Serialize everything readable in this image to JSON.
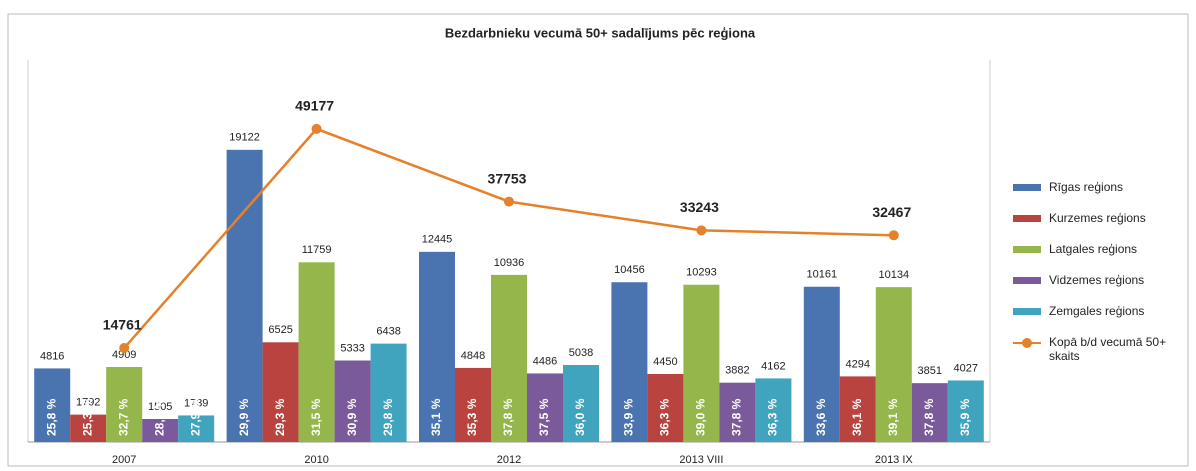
{
  "chart_data": {
    "type": "bar",
    "title": "Bezdarbnieku vecumā 50+ sadalījums pēc reģiona",
    "categories": [
      "2007",
      "2010",
      "2012",
      "2013 VIII",
      "2013 IX"
    ],
    "ylim": [
      0,
      25000
    ],
    "y2lim": [
      0,
      60000
    ],
    "series": [
      {
        "name": "Rīgas reģions",
        "color": "#4a74b0",
        "values": [
          4816,
          19122,
          12445,
          10456,
          10161
        ],
        "share_labels": [
          "25,8 %",
          "29,9 %",
          "35,1 %",
          "33,9 %",
          "33,6 %"
        ]
      },
      {
        "name": "Kurzemes reģions",
        "color": "#b8433f",
        "values": [
          1792,
          6525,
          4848,
          4450,
          4294
        ],
        "share_labels": [
          "25,3 %",
          "29,3 %",
          "35,3 %",
          "36,3 %",
          "36,1 %"
        ]
      },
      {
        "name": "Latgales reģions",
        "color": "#94b64a",
        "values": [
          4909,
          11759,
          10936,
          10293,
          10134
        ],
        "share_labels": [
          "32,7 %",
          "31,5 %",
          "37,8 %",
          "39,0 %",
          "39,1 %"
        ]
      },
      {
        "name": "Vidzemes reģions",
        "color": "#7a5a9a",
        "values": [
          1505,
          5333,
          4486,
          3882,
          3851
        ],
        "share_labels": [
          "28,2 %",
          "30,9 %",
          "37,5 %",
          "37,8 %",
          "37,8 %"
        ]
      },
      {
        "name": "Zemgales reģions",
        "color": "#40a4bf",
        "values": [
          1739,
          6438,
          5038,
          4162,
          4027
        ],
        "share_labels": [
          "27,9 %",
          "29,8 %",
          "36,0 %",
          "36,3 %",
          "35,9 %"
        ]
      },
      {
        "name": "Kopā b/d vecumā 50+ skaits",
        "color": "#e5812a",
        "type": "line",
        "axis": "y2",
        "values": [
          14761,
          49177,
          37753,
          33243,
          32467
        ]
      }
    ]
  }
}
